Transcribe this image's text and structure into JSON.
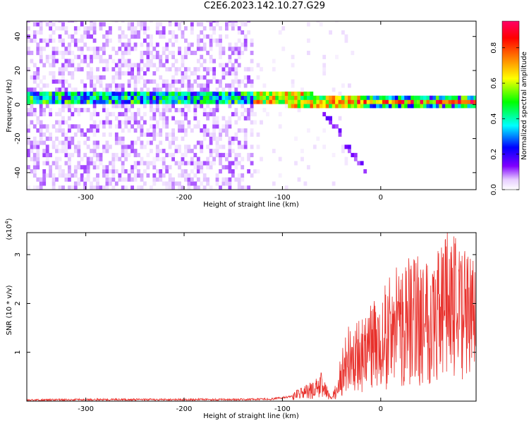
{
  "title": "C2E6.2023.142.10.27.G29",
  "chart_data": [
    {
      "type": "heatmap",
      "xlabel": "Height of straight line (km)",
      "ylabel": "Frequency (Hz)",
      "xlim": [
        -360,
        97
      ],
      "ylim": [
        -50,
        49
      ],
      "xticks": [
        -300,
        -200,
        -100,
        0
      ],
      "yticks": [
        -40,
        -20,
        0,
        20,
        40
      ],
      "grid": false,
      "colorbar": {
        "label": "Normalized spectral amplitude",
        "range": [
          0,
          0.95
        ],
        "ticks": [
          0.0,
          0.2,
          0.4,
          0.6,
          0.8
        ],
        "colormap": [
          "#ffffff",
          "#e6ccff",
          "#8000ff",
          "#0000ff",
          "#00ffff",
          "#00ff00",
          "#ffff00",
          "#ff8000",
          "#ff0000",
          "#ff0066"
        ]
      },
      "features": {
        "main_band_center_hz": 3,
        "main_band_width_hz": 8,
        "noise_region_km": [
          -360,
          -130
        ],
        "shifting_band": {
          "from_km": -130,
          "to_km": -20,
          "freq_from_hz": 3,
          "freq_to_hz": -35
        },
        "stable_band": {
          "from_km": -35,
          "to_km": 97,
          "freq_hz": 0
        }
      }
    },
    {
      "type": "line",
      "xlabel": "Height of straight line (km)",
      "ylabel": "SNR (10 * v/v)",
      "multiplier_label": "(x10",
      "multiplier_exp": "4",
      "multiplier_close": ")",
      "xlim": [
        -360,
        97
      ],
      "ylim": [
        0,
        3.45
      ],
      "xticks": [
        -300,
        -200,
        -100,
        0
      ],
      "yticks": [
        1,
        2,
        3
      ],
      "series": [
        {
          "color": "#e8302b",
          "x": [
            -360,
            -300,
            -250,
            -200,
            -150,
            -110,
            -90,
            -70,
            -60,
            -50,
            -45,
            -40,
            -35,
            -30,
            -20,
            -10,
            0,
            10,
            20,
            30,
            40,
            50,
            60,
            70,
            80,
            90,
            97
          ],
          "y": [
            0.02,
            0.03,
            0.03,
            0.03,
            0.03,
            0.04,
            0.1,
            0.2,
            0.3,
            0.05,
            0.2,
            0.5,
            0.85,
            0.7,
            0.9,
            1.0,
            1.15,
            1.3,
            1.45,
            1.5,
            1.6,
            1.6,
            1.7,
            1.8,
            1.7,
            1.5,
            1.4
          ]
        }
      ]
    }
  ]
}
